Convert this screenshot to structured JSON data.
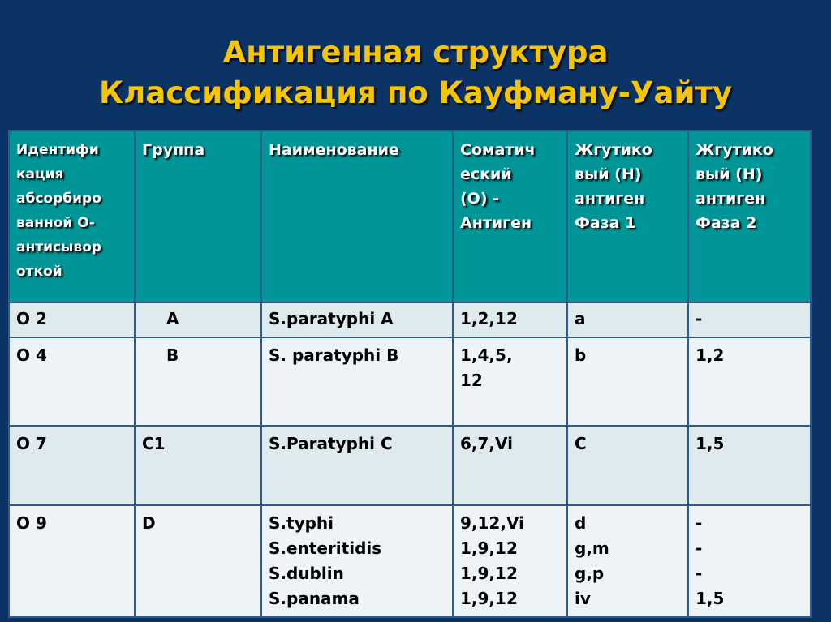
{
  "title": {
    "line1": "Антигенная структура",
    "line2": "Классификация по Кауфману-Уайту"
  },
  "colors": {
    "background": "#0b3366",
    "title": "#f4c500",
    "header": "#009698"
  },
  "table": {
    "headers": [
      "Идентифи\nкация\nабсорбиро\nванной О-\nантисывор\nоткой",
      "Группа",
      "Наименование",
      "Соматич\nеский\n (О) -\nАнтиген",
      "Жгутико\nвый (Н)\nантиген\nФаза 1",
      "Жгутико\nвый (Н)\nантиген\nФаза 2"
    ],
    "rows": [
      [
        "О 2",
        "A",
        "S.paratyphi A",
        "1,2,12",
        "a",
        "-"
      ],
      [
        "О 4",
        "B",
        "S. paratyphi B",
        "1,4,5,\n12",
        "b",
        "1,2"
      ],
      [
        "О 7",
        "C1",
        "S.Paratyphi C",
        "6,7,Vi",
        "C",
        "1,5"
      ],
      [
        "О 9",
        "D",
        "S.typhi\nS.enteritidis\nS.dublin\nS.panama",
        "9,12,Vi\n1,9,12\n1,9,12\n1,9,12",
        "d\ng,m\ng,p\niv",
        "-\n-\n-\n1,5"
      ]
    ]
  }
}
